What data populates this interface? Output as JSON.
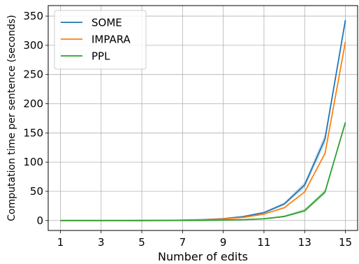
{
  "chart_data": {
    "type": "line",
    "title": "",
    "xlabel": "Number of edits",
    "ylabel": "Computation time per sentence (seconds)",
    "x": [
      1,
      2,
      3,
      4,
      5,
      6,
      7,
      8,
      9,
      10,
      11,
      12,
      13,
      14,
      15
    ],
    "xticks": [
      1,
      3,
      5,
      7,
      9,
      11,
      13,
      15
    ],
    "yticks": [
      0,
      50,
      100,
      150,
      200,
      250,
      300,
      350
    ],
    "xlim": [
      0.4,
      15.6
    ],
    "ylim": [
      -17,
      368
    ],
    "grid": true,
    "legend_position": "top-left",
    "series": [
      {
        "name": "SOME",
        "color": "#1f77b4",
        "values": [
          0,
          0,
          0,
          0,
          0.1,
          0.3,
          0.7,
          1.5,
          3.2,
          6.9,
          13.6,
          28.5,
          61,
          140,
          343
        ],
        "band": [
          0,
          0,
          0,
          0,
          0,
          0,
          0.2,
          0.4,
          0.6,
          1,
          1.5,
          2.5,
          5,
          8,
          0
        ]
      },
      {
        "name": "IMPARA",
        "color": "#ff7f0e",
        "values": [
          0,
          0,
          0,
          0,
          0.1,
          0.2,
          0.5,
          1.2,
          2.6,
          5.5,
          11,
          22,
          49,
          115,
          306
        ],
        "band": [
          0,
          0,
          0,
          0,
          0,
          0,
          0,
          0,
          0,
          0,
          0,
          0,
          0,
          0,
          0
        ]
      },
      {
        "name": "PPL",
        "color": "#2ca02c",
        "values": [
          0,
          0,
          0,
          0,
          0,
          0.1,
          0.2,
          0.4,
          0.8,
          1.5,
          3,
          7,
          17,
          49,
          168
        ],
        "band": [
          0,
          0,
          0,
          0,
          0,
          0,
          0.1,
          0.2,
          0.3,
          0.5,
          0.8,
          1.5,
          3,
          4,
          0
        ]
      }
    ]
  }
}
